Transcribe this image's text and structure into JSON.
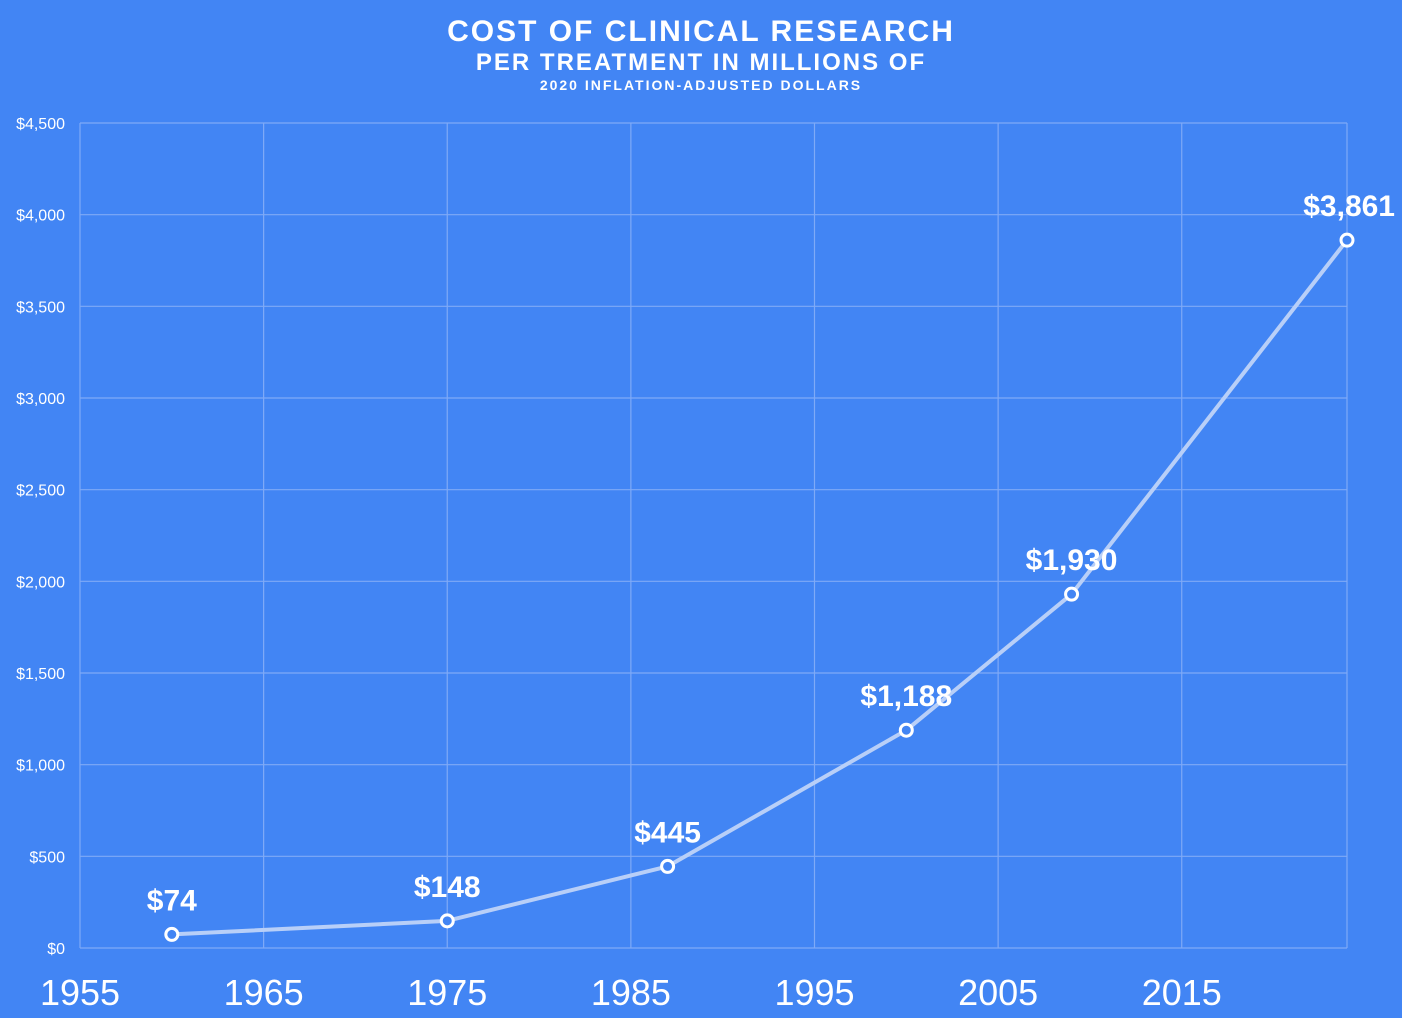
{
  "chart_data": {
    "type": "line",
    "title": "COST OF CLINICAL RESEARCH",
    "subtitle": "PER TREATMENT IN MILLIONS OF",
    "subtitle2": "2020 INFLATION-ADJUSTED DOLLARS",
    "xlabel": "",
    "ylabel": "",
    "xlim": [
      1955,
      2024
    ],
    "ylim": [
      0,
      4500
    ],
    "x_ticks": [
      1955,
      1965,
      1975,
      1985,
      1995,
      2005,
      2015
    ],
    "x_tick_labels": [
      "1955",
      "1965",
      "1975",
      "1985",
      "1995",
      "2005",
      "2015"
    ],
    "y_ticks": [
      0,
      500,
      1000,
      1500,
      2000,
      2500,
      3000,
      3500,
      4000,
      4500
    ],
    "y_tick_labels": [
      "$0",
      "$500",
      "$1,000",
      "$1,500",
      "$2,000",
      "$2,500",
      "$3,000",
      "$3,500",
      "$4,000",
      "$4,500"
    ],
    "grid": true,
    "series": [
      {
        "x": [
          1960,
          1975,
          1987,
          2000,
          2009,
          2024
        ],
        "values": [
          74,
          148,
          445,
          1188,
          1930,
          3861
        ],
        "labels": [
          "$74",
          "$148",
          "$445",
          "$1,188",
          "$1,930",
          "$3,861"
        ]
      }
    ],
    "colors": {
      "background": "#4285F4",
      "grid": "#7FAAF7",
      "line": "#B8CFF8",
      "marker_fill": "#4285F4",
      "marker_stroke": "#FFFFFF"
    }
  }
}
